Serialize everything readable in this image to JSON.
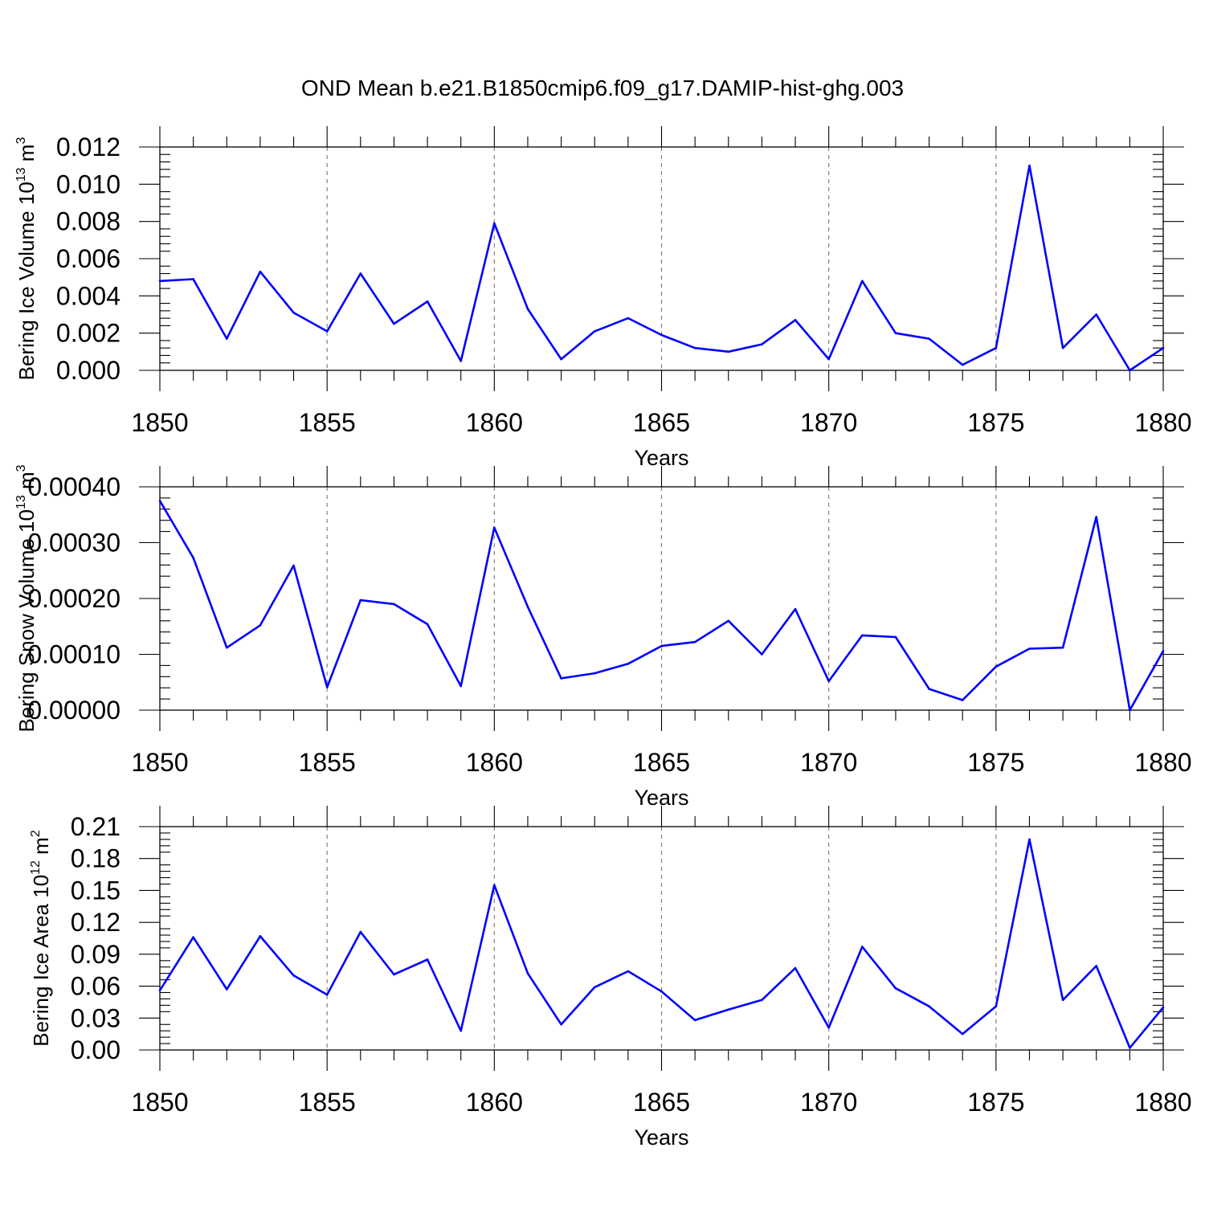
{
  "figure": {
    "title": "OND Mean b.e21.B1850cmip6.f09_g17.DAMIP-hist-ghg.003",
    "line_color": "#0000ff"
  },
  "chart_data": [
    {
      "type": "line",
      "title": "",
      "xlabel": "Years",
      "ylabel": "Bering Ice Volume 10",
      "ylabel_exp": "13",
      "ylabel_unit": " m",
      "ylabel_unit_exp": "3",
      "xlim": [
        1850,
        1880
      ],
      "ylim": [
        0,
        0.012
      ],
      "x_ticks": [
        1850,
        1855,
        1860,
        1865,
        1870,
        1875,
        1880
      ],
      "x_tick_labels": [
        "1850",
        "1855",
        "1860",
        "1865",
        "1870",
        "1875",
        "1880"
      ],
      "y_ticks": [
        0,
        0.002,
        0.004,
        0.006,
        0.008,
        0.01,
        0.012
      ],
      "y_tick_labels": [
        "0.000",
        "0.002",
        "0.004",
        "0.006",
        "0.008",
        "0.010",
        "0.012"
      ],
      "grid": "vertical dashed at major x ticks",
      "x": [
        1850,
        1851,
        1852,
        1853,
        1854,
        1855,
        1856,
        1857,
        1858,
        1859,
        1860,
        1861,
        1862,
        1863,
        1864,
        1865,
        1866,
        1867,
        1868,
        1869,
        1870,
        1871,
        1872,
        1873,
        1874,
        1875,
        1876,
        1877,
        1878,
        1879,
        1880
      ],
      "values": [
        0.0048,
        0.0049,
        0.0017,
        0.0053,
        0.0031,
        0.0021,
        0.0052,
        0.0025,
        0.0037,
        0.0005,
        0.0079,
        0.0033,
        0.0006,
        0.0021,
        0.0028,
        0.0019,
        0.0012,
        0.001,
        0.0014,
        0.0027,
        0.0006,
        0.0048,
        0.002,
        0.0017,
        0.0003,
        0.0012,
        0.011,
        0.0012,
        0.003,
        0.0,
        0.0012
      ]
    },
    {
      "type": "line",
      "title": "",
      "xlabel": "Years",
      "ylabel": "Bering Snow Volume 10",
      "ylabel_exp": "13",
      "ylabel_unit": " m",
      "ylabel_unit_exp": "3",
      "xlim": [
        1850,
        1880
      ],
      "ylim": [
        0,
        0.0004
      ],
      "x_ticks": [
        1850,
        1855,
        1860,
        1865,
        1870,
        1875,
        1880
      ],
      "x_tick_labels": [
        "1850",
        "1855",
        "1860",
        "1865",
        "1870",
        "1875",
        "1880"
      ],
      "y_ticks": [
        0,
        0.0001,
        0.0002,
        0.0003,
        0.0004
      ],
      "y_tick_labels": [
        "0.00000",
        "0.00010",
        "0.00020",
        "0.00030",
        "0.00040"
      ],
      "grid": "vertical dashed at major x ticks",
      "x": [
        1850,
        1851,
        1852,
        1853,
        1854,
        1855,
        1856,
        1857,
        1858,
        1859,
        1860,
        1861,
        1862,
        1863,
        1864,
        1865,
        1866,
        1867,
        1868,
        1869,
        1870,
        1871,
        1872,
        1873,
        1874,
        1875,
        1876,
        1877,
        1878,
        1879,
        1880
      ],
      "values": [
        0.000375,
        0.000273,
        0.000112,
        0.000152,
        0.000259,
        4.1e-05,
        0.000197,
        0.00019,
        0.000154,
        4.3e-05,
        0.000327,
        0.000185,
        5.7e-05,
        6.6e-05,
        8.3e-05,
        0.000115,
        0.000122,
        0.00016,
        0.0001,
        0.000181,
        5.2e-05,
        0.000134,
        0.000131,
        3.8e-05,
        1.8e-05,
        7.8e-05,
        0.00011,
        0.000112,
        0.000346,
        0.0,
        0.000106
      ]
    },
    {
      "type": "line",
      "title": "",
      "xlabel": "Years",
      "ylabel": "Bering Ice Area 10",
      "ylabel_exp": "12",
      "ylabel_unit": " m",
      "ylabel_unit_exp": "2",
      "xlim": [
        1850,
        1880
      ],
      "ylim": [
        0,
        0.21
      ],
      "x_ticks": [
        1850,
        1855,
        1860,
        1865,
        1870,
        1875,
        1880
      ],
      "x_tick_labels": [
        "1850",
        "1855",
        "1860",
        "1865",
        "1870",
        "1875",
        "1880"
      ],
      "y_ticks": [
        0,
        0.03,
        0.06,
        0.09,
        0.12,
        0.15,
        0.18,
        0.21
      ],
      "y_tick_labels": [
        "0.00",
        "0.03",
        "0.06",
        "0.09",
        "0.12",
        "0.15",
        "0.18",
        "0.21"
      ],
      "grid": "vertical dashed at major x ticks",
      "x": [
        1850,
        1851,
        1852,
        1853,
        1854,
        1855,
        1856,
        1857,
        1858,
        1859,
        1860,
        1861,
        1862,
        1863,
        1864,
        1865,
        1866,
        1867,
        1868,
        1869,
        1870,
        1871,
        1872,
        1873,
        1874,
        1875,
        1876,
        1877,
        1878,
        1879,
        1880
      ],
      "values": [
        0.056,
        0.106,
        0.057,
        0.107,
        0.07,
        0.052,
        0.111,
        0.071,
        0.085,
        0.018,
        0.155,
        0.072,
        0.024,
        0.059,
        0.074,
        0.055,
        0.028,
        0.038,
        0.047,
        0.077,
        0.021,
        0.097,
        0.058,
        0.041,
        0.015,
        0.041,
        0.198,
        0.047,
        0.079,
        0.002,
        0.04
      ]
    }
  ]
}
